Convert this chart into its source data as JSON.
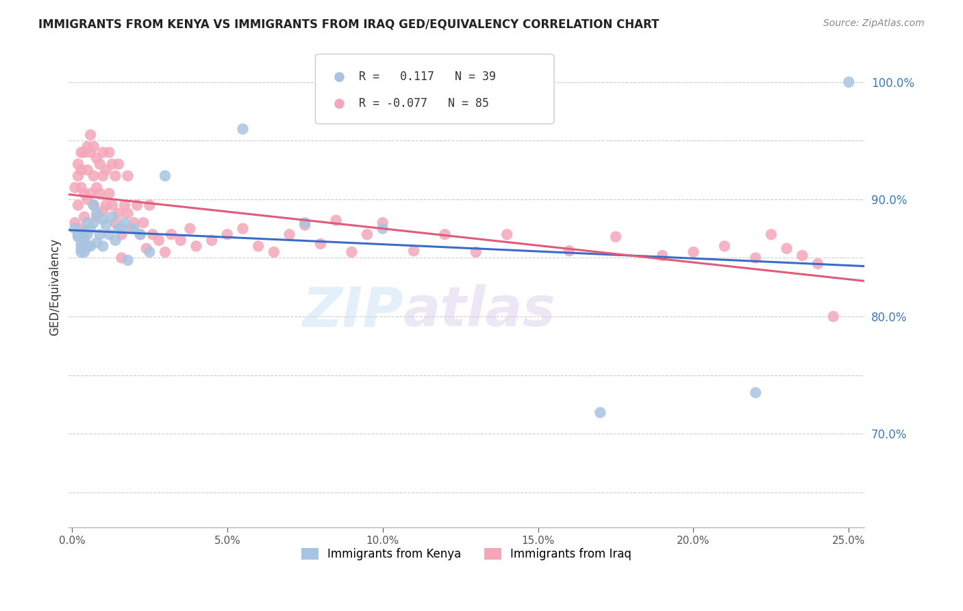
{
  "title": "IMMIGRANTS FROM KENYA VS IMMIGRANTS FROM IRAQ GED/EQUIVALENCY CORRELATION CHART",
  "source": "Source: ZipAtlas.com",
  "ylabel": "GED/Equivalency",
  "yticks": [
    0.65,
    0.7,
    0.75,
    0.8,
    0.85,
    0.9,
    0.95,
    1.0
  ],
  "ytick_labels": [
    "",
    "70.0%",
    "",
    "80.0%",
    "",
    "90.0%",
    "",
    "100.0%"
  ],
  "ylim": [
    0.62,
    1.03
  ],
  "xlim": [
    -0.001,
    0.255
  ],
  "xticks": [
    0.0,
    0.05,
    0.1,
    0.15,
    0.2,
    0.25
  ],
  "xtick_labels": [
    "0.0%",
    "5.0%",
    "10.0%",
    "15.0%",
    "20.0%",
    "25.0%"
  ],
  "kenya_R": 0.117,
  "kenya_N": 39,
  "iraq_R": -0.077,
  "iraq_N": 85,
  "kenya_color": "#a8c4e0",
  "iraq_color": "#f4a7b9",
  "kenya_line_color": "#3a6bc9",
  "iraq_line_color": "#e05a7a",
  "watermark_zip": "ZIP",
  "watermark_atlas": "atlas",
  "legend_kenya": "Immigrants from Kenya",
  "legend_iraq": "Immigrants from Iraq",
  "kenya_x": [
    0.001,
    0.002,
    0.002,
    0.003,
    0.003,
    0.003,
    0.004,
    0.004,
    0.004,
    0.005,
    0.005,
    0.005,
    0.006,
    0.006,
    0.007,
    0.007,
    0.008,
    0.008,
    0.009,
    0.01,
    0.01,
    0.011,
    0.012,
    0.013,
    0.014,
    0.015,
    0.016,
    0.017,
    0.018,
    0.02,
    0.022,
    0.025,
    0.03,
    0.055,
    0.075,
    0.1,
    0.17,
    0.22,
    0.25
  ],
  "kenya_y": [
    0.875,
    0.87,
    0.868,
    0.862,
    0.858,
    0.855,
    0.872,
    0.865,
    0.855,
    0.88,
    0.87,
    0.86,
    0.875,
    0.86,
    0.895,
    0.88,
    0.888,
    0.863,
    0.87,
    0.883,
    0.86,
    0.878,
    0.87,
    0.885,
    0.865,
    0.875,
    0.875,
    0.88,
    0.848,
    0.875,
    0.87,
    0.855,
    0.92,
    0.96,
    0.88,
    0.875,
    0.718,
    0.735,
    1.0
  ],
  "iraq_x": [
    0.001,
    0.001,
    0.002,
    0.002,
    0.002,
    0.003,
    0.003,
    0.003,
    0.003,
    0.004,
    0.004,
    0.004,
    0.005,
    0.005,
    0.005,
    0.006,
    0.006,
    0.006,
    0.007,
    0.007,
    0.007,
    0.008,
    0.008,
    0.008,
    0.009,
    0.009,
    0.01,
    0.01,
    0.01,
    0.011,
    0.011,
    0.012,
    0.012,
    0.013,
    0.013,
    0.014,
    0.014,
    0.015,
    0.015,
    0.016,
    0.016,
    0.017,
    0.018,
    0.018,
    0.019,
    0.02,
    0.021,
    0.022,
    0.023,
    0.024,
    0.025,
    0.026,
    0.028,
    0.03,
    0.032,
    0.035,
    0.038,
    0.04,
    0.045,
    0.05,
    0.055,
    0.06,
    0.065,
    0.07,
    0.075,
    0.08,
    0.085,
    0.09,
    0.095,
    0.1,
    0.11,
    0.12,
    0.13,
    0.14,
    0.16,
    0.175,
    0.19,
    0.2,
    0.21,
    0.22,
    0.225,
    0.23,
    0.235,
    0.24,
    0.245
  ],
  "iraq_y": [
    0.88,
    0.91,
    0.93,
    0.92,
    0.895,
    0.94,
    0.925,
    0.91,
    0.875,
    0.94,
    0.905,
    0.885,
    0.945,
    0.925,
    0.9,
    0.955,
    0.94,
    0.905,
    0.945,
    0.92,
    0.895,
    0.935,
    0.91,
    0.885,
    0.93,
    0.905,
    0.94,
    0.92,
    0.89,
    0.925,
    0.895,
    0.94,
    0.905,
    0.93,
    0.895,
    0.92,
    0.88,
    0.93,
    0.888,
    0.87,
    0.85,
    0.895,
    0.92,
    0.888,
    0.875,
    0.88,
    0.895,
    0.87,
    0.88,
    0.858,
    0.895,
    0.87,
    0.865,
    0.855,
    0.87,
    0.865,
    0.875,
    0.86,
    0.865,
    0.87,
    0.875,
    0.86,
    0.855,
    0.87,
    0.878,
    0.862,
    0.882,
    0.855,
    0.87,
    0.88,
    0.856,
    0.87,
    0.855,
    0.87,
    0.856,
    0.868,
    0.852,
    0.855,
    0.86,
    0.85,
    0.87,
    0.858,
    0.852,
    0.845,
    0.8
  ]
}
